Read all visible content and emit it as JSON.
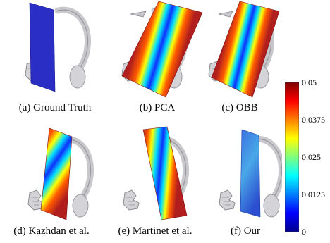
{
  "panels": [
    {
      "caption": "(a) Ground Truth"
    },
    {
      "caption": "(b) PCA"
    },
    {
      "caption": "(c) OBB"
    },
    {
      "caption": "(d) Kazhdan et al."
    },
    {
      "caption": "(e) Martinet et al."
    },
    {
      "caption": "(f) Our"
    }
  ],
  "colorbar": {
    "ticks": [
      "0.05",
      "0.0375",
      "0.025",
      "0.0125",
      "0"
    ],
    "colormap": "jet"
  },
  "colors": {
    "plane_blue": "#2a2ec4",
    "plane_red": "#b01e1e",
    "model_gray": "#c8c8cc"
  }
}
